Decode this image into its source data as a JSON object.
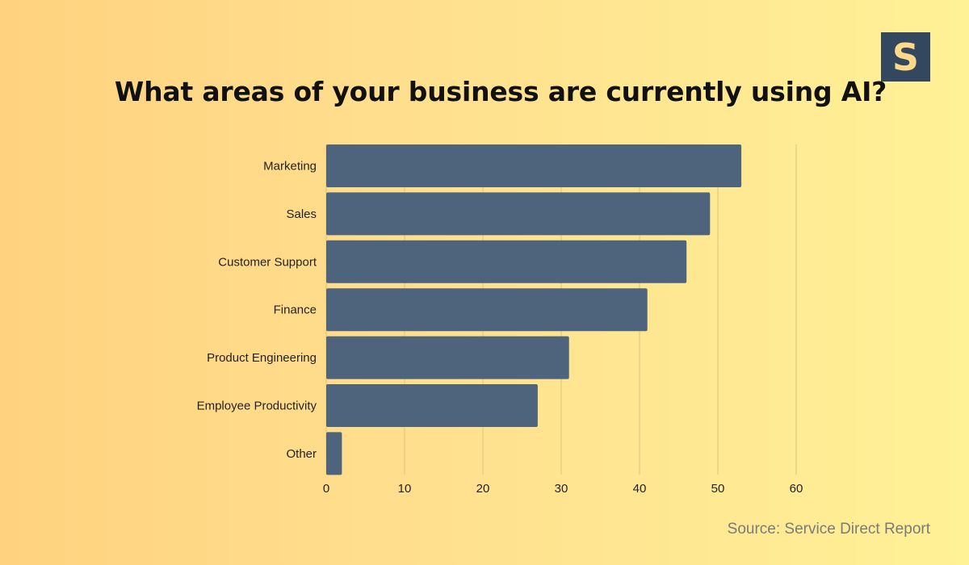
{
  "logo": {
    "letter": "S"
  },
  "title": "What areas of your business are currently using AI?",
  "source": "Source: Service Direct Report",
  "colors": {
    "bar": "#4e647c",
    "grid": "#d9c47a",
    "text": "#222222"
  },
  "chart_data": {
    "type": "bar",
    "orientation": "horizontal",
    "title": "What areas of your business are currently using AI?",
    "categories": [
      "Marketing",
      "Sales",
      "Customer Support",
      "Finance",
      "Product Engineering",
      "Employee Productivity",
      "Other"
    ],
    "values": [
      53,
      49,
      46,
      41,
      31,
      27,
      2
    ],
    "xticks": [
      "0",
      "10",
      "20",
      "30",
      "40",
      "50",
      "60"
    ],
    "xlim": [
      0,
      60
    ],
    "grid": "vertical",
    "legend": "none"
  }
}
